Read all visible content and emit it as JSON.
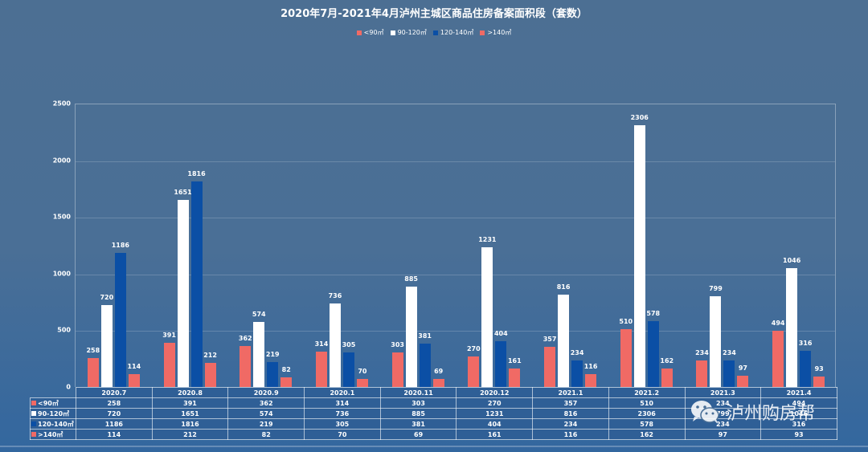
{
  "chart_data": {
    "type": "bar",
    "title": "2020年7月-2021年4月泸州主城区商品住房备案面积段（套数）",
    "xlabel": "",
    "ylabel": "",
    "ylim": [
      0,
      2500
    ],
    "yticks": [
      "0",
      "500",
      "1000",
      "1500",
      "2000",
      "2500"
    ],
    "grid": true,
    "legend_position": "top",
    "categories": [
      "2020.7",
      "2020.8",
      "2020.9",
      "2020.1",
      "2020.11",
      "2020.12",
      "2021.1",
      "2021.2",
      "2021.3",
      "2021.4"
    ],
    "series": [
      {
        "name": "<90㎡",
        "color": "#f06a65",
        "values": [
          258,
          391,
          362,
          314,
          303,
          270,
          357,
          510,
          234,
          494
        ]
      },
      {
        "name": "90-120㎡",
        "color": "#ffffff",
        "values": [
          720,
          1651,
          574,
          736,
          885,
          1231,
          816,
          2306,
          799,
          1046
        ]
      },
      {
        "name": "120-140㎡",
        "color": "#0b4fa5",
        "values": [
          1186,
          1816,
          219,
          305,
          381,
          404,
          234,
          578,
          234,
          316
        ]
      },
      {
        "name": ">140㎡",
        "color": "#f06a65",
        "values": [
          114,
          212,
          82,
          70,
          69,
          161,
          116,
          162,
          97,
          93
        ]
      }
    ],
    "data_table": true
  },
  "watermark": {
    "text": "泸州购房帮",
    "icon": "wechat-icon"
  }
}
